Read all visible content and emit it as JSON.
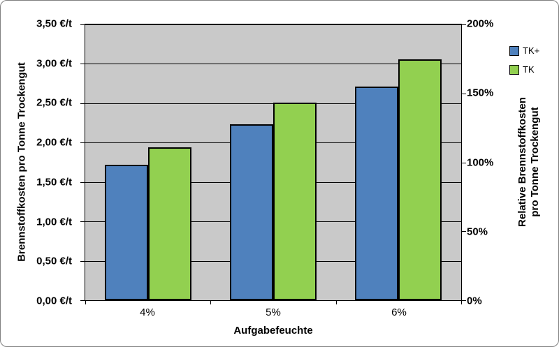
{
  "chart_data": {
    "type": "bar",
    "title": "",
    "categories": [
      "4%",
      "5%",
      "6%"
    ],
    "series": [
      {
        "name": "TK+",
        "color": "#4f81bd",
        "values": [
          1.72,
          2.23,
          2.71
        ]
      },
      {
        "name": "TK",
        "color": "#92d050",
        "values": [
          1.94,
          2.51,
          3.06
        ]
      }
    ],
    "xlabel": "Aufgabefeuchte",
    "left_axis": {
      "title": "Brennstoffkosten pro Tonne Trockengut",
      "ticks": [
        "3,50 €/t",
        "3,00 €/t",
        "2,50 €/t",
        "2,00 €/t",
        "1,50 €/t",
        "1,00 €/t",
        "0,50 €/t",
        "0,00 €/t"
      ],
      "range": [
        0,
        3.5
      ]
    },
    "right_axis": {
      "title_lines": [
        "Relative Brennstoffkosten",
        "pro Tonne Trockengut"
      ],
      "ticks": [
        "200%",
        "150%",
        "100%",
        "50%",
        "0%"
      ],
      "range": [
        0,
        200
      ]
    },
    "legend_position": "right",
    "grid": true,
    "plot_bg": "#c9c9c9",
    "gridline_color": "#000000"
  }
}
